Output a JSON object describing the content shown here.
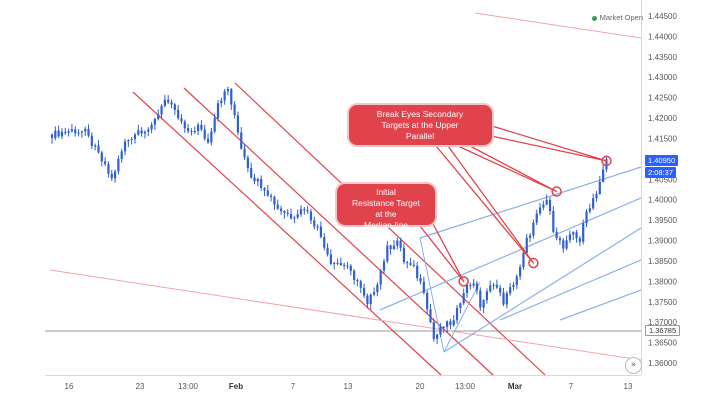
{
  "status": {
    "text": "Market Open",
    "color": "#2e9e5b"
  },
  "price_tags": {
    "current": {
      "price": "1.40950",
      "timer": "2:08:37",
      "bg": "#2962ff"
    },
    "reference": {
      "price": "1.36785"
    }
  },
  "annotations": {
    "primary": "Break Eyes Secondary Targets at the Upper Parallel",
    "secondary": "Initial Resistance Target at the Median-line"
  },
  "colors": {
    "candle": "#2f5fd0",
    "channel": "#e0434c",
    "channel_light": "#f2a4a8",
    "pitchfork": "#8ab0e8",
    "callout_fill": "#e0434c",
    "callout_border": "#f5c6c9"
  },
  "scroll_icon": "double-chevron-right-icon",
  "chart_data": {
    "type": "candlestick",
    "x_ticks": [
      "16",
      "23",
      "13:00",
      "Feb",
      "7",
      "13",
      "20",
      "13:00",
      "Mar",
      "7",
      "13"
    ],
    "y_ticks": [
      "1.36000",
      "1.36500",
      "1.37000",
      "1.37500",
      "1.38000",
      "1.38500",
      "1.39000",
      "1.39500",
      "1.40000",
      "1.40500",
      "1.41000",
      "1.41500",
      "1.42000",
      "1.42500",
      "1.43000",
      "1.43500",
      "1.44000",
      "1.44500"
    ],
    "ylim": [
      1.3575,
      1.4475
    ],
    "grid": false,
    "close_path": [
      [
        0,
        1.416
      ],
      [
        6,
        1.417
      ],
      [
        10,
        1.4165
      ],
      [
        14,
        1.411
      ],
      [
        18,
        1.405
      ],
      [
        22,
        1.414
      ],
      [
        26,
        1.417
      ],
      [
        30,
        1.4175
      ],
      [
        34,
        1.425
      ],
      [
        38,
        1.42
      ],
      [
        41,
        1.416
      ],
      [
        44,
        1.418
      ],
      [
        47,
        1.414
      ],
      [
        50,
        1.424
      ],
      [
        53,
        1.427
      ],
      [
        57,
        1.413
      ],
      [
        60,
        1.406
      ],
      [
        64,
        1.403
      ],
      [
        68,
        1.398
      ],
      [
        72,
        1.396
      ],
      [
        76,
        1.398
      ],
      [
        80,
        1.393
      ],
      [
        84,
        1.385
      ],
      [
        88,
        1.384
      ],
      [
        92,
        1.38
      ],
      [
        95,
        1.374
      ],
      [
        98,
        1.38
      ],
      [
        101,
        1.388
      ],
      [
        104,
        1.39
      ],
      [
        106,
        1.385
      ],
      [
        109,
        1.383
      ],
      [
        112,
        1.378
      ],
      [
        115,
        1.366
      ],
      [
        118,
        1.369
      ],
      [
        121,
        1.37
      ],
      [
        124,
        1.378
      ],
      [
        127,
        1.38
      ],
      [
        129,
        1.374
      ],
      [
        131,
        1.377
      ],
      [
        133,
        1.38
      ],
      [
        136,
        1.375
      ],
      [
        138,
        1.378
      ],
      [
        141,
        1.383
      ],
      [
        143,
        1.39
      ],
      [
        146,
        1.396
      ],
      [
        149,
        1.4
      ],
      [
        151,
        1.393
      ],
      [
        154,
        1.388
      ],
      [
        157,
        1.392
      ],
      [
        159,
        1.39
      ],
      [
        161,
        1.397
      ],
      [
        164,
        1.402
      ],
      [
        167,
        1.4095
      ]
    ],
    "marked_points": [
      {
        "x": 124,
        "y": 1.38
      },
      {
        "x": 145,
        "y": 1.3845
      },
      {
        "x": 152,
        "y": 1.402
      },
      {
        "x": 167,
        "y": 1.4095
      }
    ],
    "reference_lines": [
      1.36785
    ],
    "last_price": 1.4095
  }
}
